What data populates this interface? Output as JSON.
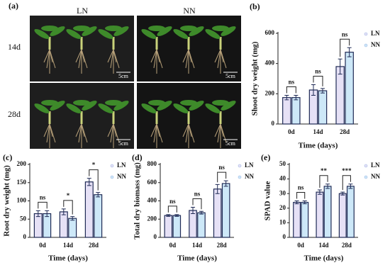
{
  "photo": {
    "panel_label": "(a)",
    "columns": [
      "LN",
      "NN"
    ],
    "rows": [
      "14d",
      "28d"
    ],
    "scale_bars": [
      "5cm",
      "5cm",
      "5cm",
      "5cm"
    ]
  },
  "chart_data": [
    {
      "type": "bar",
      "panel_label": "(b)",
      "y_label": "Shoot dry weight (mg)",
      "x_label": "Time (days)",
      "categories": [
        "0d",
        "14d",
        "28d"
      ],
      "series": [
        {
          "name": "LN",
          "color": "#e6e1f6",
          "values": [
            175,
            225,
            380
          ],
          "errors": [
            15,
            35,
            50
          ]
        },
        {
          "name": "NN",
          "color": "#cde8f8",
          "values": [
            175,
            220,
            475
          ],
          "errors": [
            15,
            15,
            30
          ]
        }
      ],
      "annotations": [
        "ns",
        "ns",
        "ns"
      ],
      "ylim": [
        0,
        600
      ],
      "yticks": [
        0,
        200,
        400,
        600
      ],
      "grid": false,
      "legend": "right"
    },
    {
      "type": "bar",
      "panel_label": "(c)",
      "y_label": "Root dry weight (mg)",
      "x_label": "Time (days)",
      "categories": [
        "0d",
        "14d",
        "28d"
      ],
      "series": [
        {
          "name": "LN",
          "color": "#e6e1f6",
          "values": [
            65,
            70,
            152
          ],
          "errors": [
            8,
            8,
            10
          ]
        },
        {
          "name": "NN",
          "color": "#cde8f8",
          "values": [
            65,
            52,
            117
          ],
          "errors": [
            8,
            5,
            6
          ]
        }
      ],
      "annotations": [
        "ns",
        "*",
        "*"
      ],
      "ylim": [
        0,
        200
      ],
      "yticks": [
        0,
        50,
        100,
        150,
        200
      ],
      "grid": false,
      "legend": "right"
    },
    {
      "type": "bar",
      "panel_label": "(d)",
      "y_label": "Total dry biomass (mg)",
      "x_label": "Time (days)",
      "categories": [
        "0d",
        "14d",
        "28d"
      ],
      "series": [
        {
          "name": "LN",
          "color": "#e6e1f6",
          "values": [
            240,
            295,
            530
          ],
          "errors": [
            10,
            35,
            50
          ]
        },
        {
          "name": "NN",
          "color": "#cde8f8",
          "values": [
            240,
            270,
            590
          ],
          "errors": [
            10,
            15,
            30
          ]
        }
      ],
      "annotations": [
        "ns",
        "ns",
        "ns"
      ],
      "ylim": [
        0,
        800
      ],
      "yticks": [
        0,
        200,
        400,
        600,
        800
      ],
      "grid": false,
      "legend": "right"
    },
    {
      "type": "bar",
      "panel_label": "(e)",
      "y_label": "SPAD value",
      "x_label": "Time (days)",
      "categories": [
        "0d",
        "14d",
        "28d"
      ],
      "series": [
        {
          "name": "LN",
          "color": "#e6e1f6",
          "values": [
            24,
            31,
            30
          ],
          "errors": [
            1,
            1.5,
            1
          ]
        },
        {
          "name": "NN",
          "color": "#cde8f8",
          "values": [
            24,
            35,
            35
          ],
          "errors": [
            1,
            1.5,
            1.5
          ]
        }
      ],
      "annotations": [
        "ns",
        "**",
        "***"
      ],
      "ylim": [
        0,
        50
      ],
      "yticks": [
        0,
        10,
        20,
        30,
        40,
        50
      ],
      "grid": false,
      "legend": "right"
    }
  ]
}
